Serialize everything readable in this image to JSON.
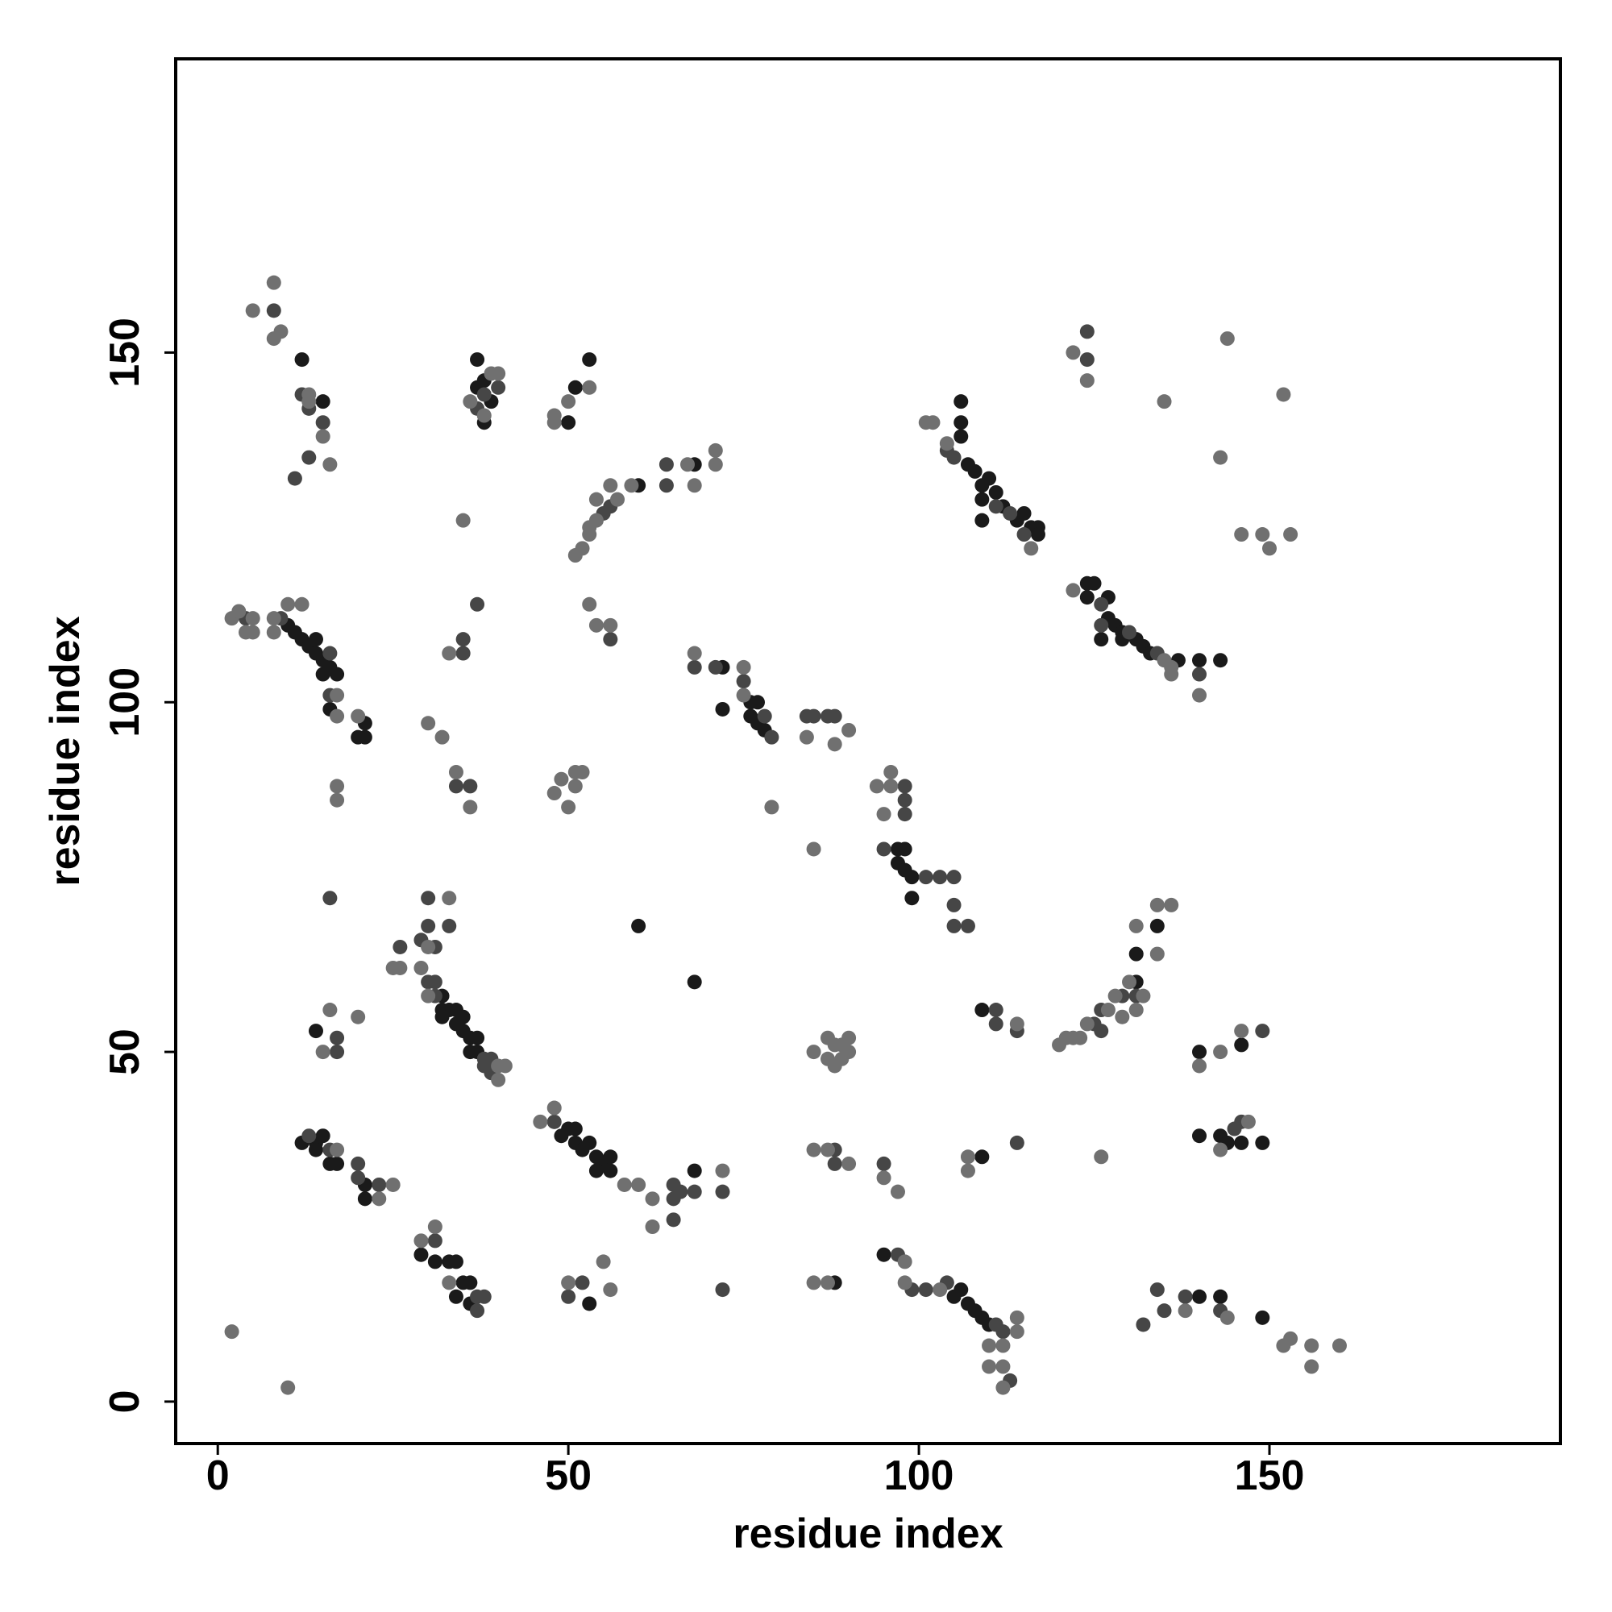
{
  "chart_data": {
    "type": "scatter",
    "xlabel": "residue index",
    "ylabel": "residue index",
    "xlim": [
      -6,
      191.5
    ],
    "ylim": [
      -6,
      192
    ],
    "xticks": [
      0,
      50,
      100,
      150
    ],
    "yticks": [
      0,
      50,
      100,
      150
    ],
    "series": [
      {
        "color": "#1a1a1a",
        "x": [
          12,
          15,
          10,
          11,
          12,
          13,
          14,
          14,
          15,
          15,
          16,
          17,
          16,
          21,
          20,
          21,
          37,
          37,
          38,
          38,
          39,
          50,
          51,
          53,
          60,
          68,
          72,
          72,
          76,
          77,
          76,
          78,
          77,
          97,
          98,
          97,
          98,
          99,
          99,
          106,
          106,
          106,
          107,
          108,
          109,
          110,
          111,
          109,
          112,
          114,
          115,
          116,
          117,
          117,
          109,
          124,
          125,
          124,
          127,
          127,
          128,
          129,
          126,
          129,
          131,
          132,
          133,
          137,
          140,
          143,
          32,
          32,
          33,
          34,
          35,
          32,
          34,
          35,
          36,
          37,
          37,
          36,
          14,
          12,
          14,
          15,
          14,
          16,
          17,
          21,
          21,
          29,
          31,
          33,
          34,
          35,
          36,
          34,
          36,
          50,
          49,
          51,
          51,
          52,
          53,
          54,
          55,
          56,
          56,
          54,
          68,
          53,
          60,
          68,
          88,
          95,
          105,
          106,
          107,
          108,
          109,
          110,
          140,
          143,
          149,
          109,
          131,
          131,
          134,
          140,
          146,
          140,
          143,
          146,
          149,
          144,
          109
        ],
        "values": [
          149,
          143,
          111,
          110,
          109,
          108,
          109,
          107,
          106,
          104,
          105,
          104,
          99,
          97,
          95,
          95,
          149,
          145,
          146,
          140,
          143,
          140,
          145,
          149,
          131,
          134,
          105,
          99,
          100,
          100,
          98,
          96,
          97,
          79,
          79,
          77,
          76,
          75,
          72,
          143,
          140,
          138,
          134,
          133,
          131,
          132,
          130,
          129,
          128,
          126,
          127,
          125,
          125,
          124,
          126,
          117,
          117,
          115,
          115,
          112,
          111,
          110,
          109,
          109,
          109,
          108,
          107,
          106,
          106,
          106,
          58,
          56,
          56,
          56,
          55,
          55,
          54,
          53,
          52,
          52,
          50,
          50,
          53,
          37,
          37,
          38,
          36,
          34,
          34,
          31,
          29,
          21,
          20,
          20,
          20,
          17,
          17,
          15,
          14,
          39,
          38,
          39,
          37,
          36,
          37,
          35,
          34,
          35,
          33,
          33,
          33,
          14,
          68,
          60,
          17,
          21,
          15,
          16,
          14,
          13,
          12,
          11,
          15,
          15,
          12,
          56,
          60,
          64,
          68,
          50,
          51,
          38,
          38,
          37,
          37,
          37,
          35
        ]
      },
      {
        "color": "#464646",
        "x": [
          8,
          12,
          13,
          15,
          13,
          11,
          4,
          9,
          16,
          16,
          16,
          37,
          40,
          38,
          56,
          55,
          64,
          64,
          56,
          35,
          37,
          35,
          34,
          36,
          68,
          71,
          75,
          78,
          79,
          84,
          85,
          87,
          88,
          98,
          98,
          98,
          95,
          101,
          103,
          105,
          105,
          105,
          107,
          105,
          111,
          113,
          115,
          104,
          124,
          124,
          126,
          126,
          134,
          140,
          130,
          30,
          30,
          33,
          29,
          31,
          26,
          30,
          31,
          31,
          38,
          39,
          38,
          39,
          17,
          17,
          13,
          16,
          20,
          20,
          23,
          31,
          37,
          38,
          37,
          48,
          65,
          65,
          66,
          68,
          72,
          65,
          50,
          52,
          72,
          88,
          88,
          95,
          97,
          99,
          101,
          104,
          111,
          112,
          113,
          132,
          134,
          135,
          138,
          143,
          111,
          111,
          114,
          125,
          126,
          129,
          131,
          126,
          149,
          145,
          146,
          114
        ],
        "values": [
          156,
          144,
          142,
          140,
          135,
          132,
          112,
          112,
          107,
          101,
          72,
          142,
          145,
          144,
          128,
          127,
          134,
          131,
          109,
          109,
          114,
          107,
          88,
          88,
          105,
          105,
          103,
          98,
          95,
          98,
          98,
          98,
          98,
          88,
          86,
          84,
          79,
          75,
          75,
          75,
          71,
          68,
          68,
          135,
          128,
          127,
          124,
          136,
          153,
          149,
          114,
          111,
          107,
          104,
          110,
          72,
          68,
          68,
          66,
          65,
          65,
          60,
          60,
          58,
          49,
          49,
          48,
          47,
          52,
          50,
          38,
          36,
          34,
          32,
          31,
          23,
          13,
          15,
          15,
          40,
          31,
          29,
          30,
          30,
          30,
          26,
          15,
          17,
          16,
          36,
          34,
          34,
          21,
          16,
          16,
          17,
          11,
          10,
          3,
          11,
          16,
          13,
          15,
          13,
          56,
          54,
          53,
          54,
          56,
          58,
          58,
          53,
          53,
          39,
          40,
          37
        ]
      },
      {
        "color": "#707070",
        "x": [
          5,
          8,
          8,
          9,
          13,
          13,
          15,
          16,
          2,
          3,
          5,
          4,
          5,
          8,
          10,
          12,
          8,
          17,
          17,
          20,
          17,
          17,
          35,
          36,
          39,
          40,
          38,
          48,
          50,
          53,
          48,
          51,
          52,
          53,
          54,
          54,
          57,
          56,
          59,
          67,
          68,
          71,
          71,
          53,
          53,
          54,
          56,
          33,
          30,
          32,
          34,
          36,
          48,
          49,
          51,
          52,
          50,
          51,
          79,
          85,
          68,
          75,
          75,
          84,
          88,
          90,
          94,
          96,
          96,
          95,
          101,
          102,
          104,
          116,
          122,
          124,
          144,
          135,
          152,
          143,
          146,
          149,
          150,
          153,
          122,
          135,
          136,
          140,
          136,
          33,
          30,
          25,
          26,
          29,
          30,
          40,
          41,
          40,
          16,
          15,
          20,
          17,
          23,
          25,
          29,
          31,
          33,
          2,
          10,
          46,
          48,
          58,
          60,
          62,
          72,
          62,
          50,
          55,
          56,
          85,
          87,
          90,
          95,
          97,
          85,
          87,
          98,
          98,
          103,
          110,
          112,
          114,
          114,
          110,
          112,
          112,
          138,
          144,
          152,
          153,
          156,
          156,
          160,
          114,
          121,
          122,
          123,
          120,
          124,
          127,
          128,
          130,
          131,
          132,
          131,
          134,
          134,
          136,
          129,
          140,
          143,
          146,
          147,
          143,
          107,
          107,
          126,
          85,
          87,
          88,
          89,
          90,
          87,
          89,
          90,
          88
        ],
        "values": [
          156,
          160,
          152,
          153,
          144,
          143,
          138,
          134,
          112,
          113,
          112,
          110,
          110,
          112,
          114,
          114,
          110,
          101,
          98,
          98,
          88,
          86,
          126,
          143,
          147,
          147,
          141,
          140,
          143,
          145,
          141,
          121,
          122,
          125,
          126,
          129,
          129,
          131,
          131,
          134,
          131,
          136,
          134,
          124,
          114,
          111,
          111,
          107,
          97,
          95,
          90,
          85,
          87,
          89,
          90,
          90,
          85,
          88,
          85,
          79,
          107,
          105,
          101,
          95,
          94,
          96,
          88,
          90,
          88,
          84,
          140,
          140,
          137,
          122,
          150,
          146,
          152,
          143,
          144,
          135,
          124,
          124,
          122,
          124,
          116,
          106,
          105,
          101,
          104,
          72,
          65,
          62,
          62,
          62,
          58,
          48,
          48,
          46,
          56,
          50,
          55,
          36,
          29,
          31,
          23,
          25,
          17,
          10,
          2,
          40,
          42,
          31,
          31,
          29,
          33,
          25,
          17,
          20,
          16,
          36,
          36,
          34,
          32,
          30,
          17,
          17,
          20,
          17,
          16,
          8,
          8,
          10,
          12,
          5,
          5,
          2,
          13,
          12,
          8,
          9,
          8,
          5,
          8,
          54,
          52,
          52,
          52,
          51,
          54,
          56,
          58,
          60,
          56,
          58,
          68,
          64,
          71,
          71,
          55,
          48,
          50,
          53,
          40,
          36,
          35,
          33,
          35,
          50,
          49,
          51,
          51,
          52,
          52,
          49,
          50,
          48
        ]
      }
    ]
  }
}
